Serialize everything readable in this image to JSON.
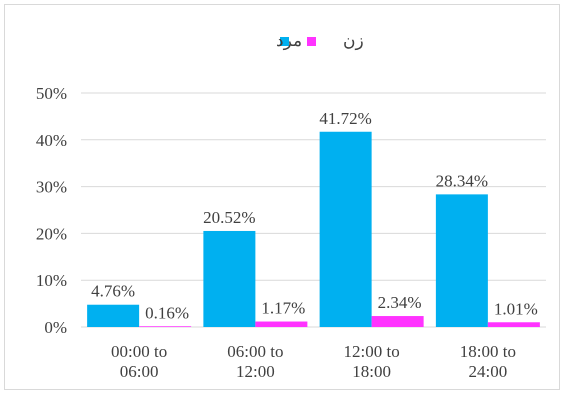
{
  "chart_data": {
    "type": "bar",
    "title": "",
    "xlabel": "",
    "ylabel": "",
    "ylim": [
      0,
      50
    ],
    "yticks": [
      0,
      10,
      20,
      30,
      40,
      50
    ],
    "ytick_labels": [
      "0%",
      "10%",
      "20%",
      "30%",
      "40%",
      "50%"
    ],
    "grid": true,
    "legend_position": "top",
    "categories": [
      [
        "00:00 to",
        "06:00"
      ],
      [
        "06:00 to",
        "12:00"
      ],
      [
        "12:00 to",
        "18:00"
      ],
      [
        "18:00 to",
        "24:00"
      ]
    ],
    "series": [
      {
        "name": "مرد",
        "color": "#00b0f0",
        "values": [
          4.76,
          20.52,
          41.72,
          28.34
        ],
        "labels": [
          "4.76%",
          "20.52%",
          "41.72%",
          "28.34%"
        ]
      },
      {
        "name": "زن",
        "color": "#ff33ff",
        "values": [
          0.16,
          1.17,
          2.34,
          1.01
        ],
        "labels": [
          "0.16%",
          "1.17%",
          "2.34%",
          "1.01%"
        ]
      }
    ]
  }
}
